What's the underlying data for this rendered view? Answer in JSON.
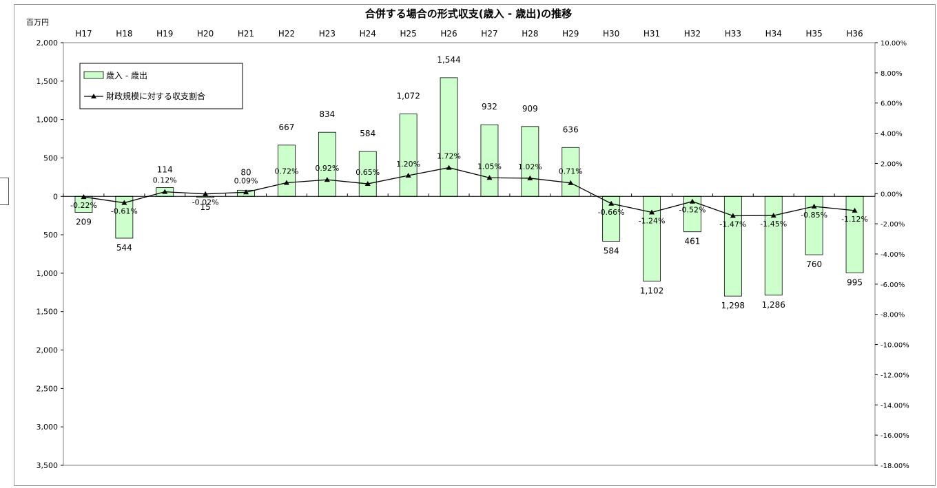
{
  "chart_data": {
    "type": "bar",
    "title": "合併する場合の形式収支(歳入 - 歳出)の推移",
    "unit_label": "百万円",
    "categories": [
      "H17",
      "H18",
      "H19",
      "H20",
      "H21",
      "H22",
      "H23",
      "H24",
      "H25",
      "H26",
      "H27",
      "H28",
      "H29",
      "H30",
      "H31",
      "H32",
      "H33",
      "H34",
      "H35",
      "H36"
    ],
    "series": [
      {
        "name": "歳入 - 歳出",
        "kind": "bar",
        "axis": "left",
        "color": "#ccffcc",
        "values": [
          -209,
          -544,
          114,
          -15,
          80,
          667,
          834,
          584,
          1072,
          1544,
          932,
          909,
          636,
          -584,
          -1102,
          -461,
          -1298,
          -1286,
          -760,
          -995
        ],
        "labels": [
          "209",
          "544",
          "114",
          "15",
          "80",
          "667",
          "834",
          "584",
          "1,072",
          "1,544",
          "932",
          "909",
          "636",
          "584",
          "1,102",
          "461",
          "1,298",
          "1,286",
          "760",
          "995"
        ]
      },
      {
        "name": "財政規模に対する収支割合",
        "kind": "line",
        "axis": "right",
        "marker": "triangle",
        "color": "#000000",
        "values": [
          -0.22,
          -0.61,
          0.12,
          -0.02,
          0.09,
          0.72,
          0.92,
          0.65,
          1.2,
          1.72,
          1.05,
          1.02,
          0.71,
          -0.66,
          -1.24,
          -0.52,
          -1.47,
          -1.45,
          -0.85,
          -1.12
        ],
        "labels": [
          "-0.22%",
          "-0.61%",
          "0.12%",
          "-0.02%",
          "0.09%",
          "0.72%",
          "0.92%",
          "0.65%",
          "1.20%",
          "1.72%",
          "1.05%",
          "1.02%",
          "0.71%",
          "-0.66%",
          "-1.24%",
          "-0.52%",
          "-1.47%",
          "-1.45%",
          "-0.85%",
          "-1.12%"
        ]
      }
    ],
    "ylim_left": [
      -3500,
      2000
    ],
    "yticks_left": [
      2000,
      1500,
      1000,
      500,
      0,
      -500,
      -1000,
      -1500,
      -2000,
      -2500,
      -3000,
      -3500
    ],
    "ytick_labels_left": [
      "2,000",
      "1,500",
      "1,000",
      "500",
      "0",
      "500",
      "1,000",
      "1,500",
      "2,000",
      "2,500",
      "3,000",
      "3,500"
    ],
    "ylim_right": [
      -18,
      10
    ],
    "yticks_right": [
      10,
      8,
      6,
      4,
      2,
      0,
      -2,
      -4,
      -6,
      -8,
      -10,
      -12,
      -14,
      -16,
      -18
    ],
    "ytick_labels_right": [
      "10.00%",
      "8.00%",
      "6.00%",
      "4.00%",
      "2.00%",
      "0.00%",
      "-2.00%",
      "-4.00%",
      "-6.00%",
      "-8.00%",
      "-10.00%",
      "-12.00%",
      "-14.00%",
      "-16.00%",
      "-18.00%"
    ],
    "category_axis_position": "top",
    "grid": false,
    "legend": {
      "placement": "top-left",
      "entries": [
        "歳入 - 歳出",
        "財政規模に対する収支割合"
      ]
    }
  }
}
